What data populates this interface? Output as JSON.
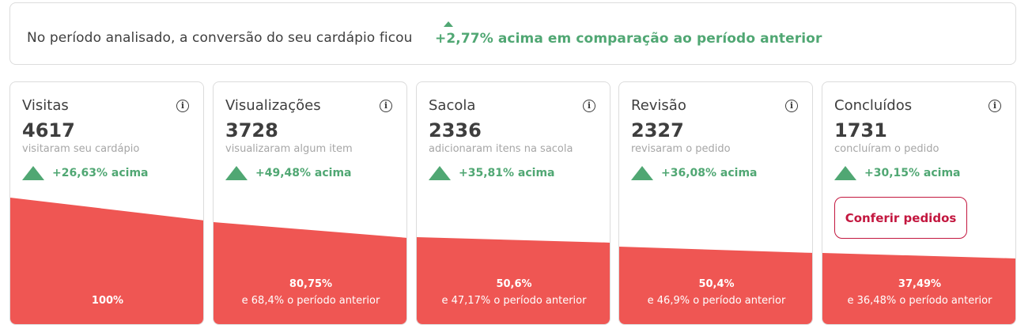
{
  "summary": {
    "text": "No período analisado, a conversão do seu cardápio ficou",
    "highlight": "+2,77% acima em comparação ao período anterior",
    "highlight_color": "#50a773"
  },
  "colors": {
    "funnel": "#ef5653",
    "positive": "#50a773",
    "action": "#c3173f"
  },
  "info_icon": "info-icon",
  "cards": [
    {
      "title": "Visitas",
      "value": "4617",
      "description": "visitaram seu cardápio",
      "trend": "+26,63% acima",
      "percent_label": "100%",
      "previous_label": ""
    },
    {
      "title": "Visualizações",
      "value": "3728",
      "description": "visualizaram algum item",
      "trend": "+49,48% acima",
      "percent_label": "80,75%",
      "previous_label": "e 68,4% o período anterior"
    },
    {
      "title": "Sacola",
      "value": "2336",
      "description": "adicionaram itens na sacola",
      "trend": "+35,81% acima",
      "percent_label": "50,6%",
      "previous_label": "e 47,17% o período anterior"
    },
    {
      "title": "Revisão",
      "value": "2327",
      "description": "revisaram o pedido",
      "trend": "+36,08% acima",
      "percent_label": "50,4%",
      "previous_label": "e 46,9% o período anterior"
    },
    {
      "title": "Concluídos",
      "value": "1731",
      "description": "concluíram o pedido",
      "trend": "+30,15% acima",
      "percent_label": "37,49%",
      "previous_label": "e 36,48% o período anterior",
      "button_label": "Conferir pedidos"
    }
  ]
}
